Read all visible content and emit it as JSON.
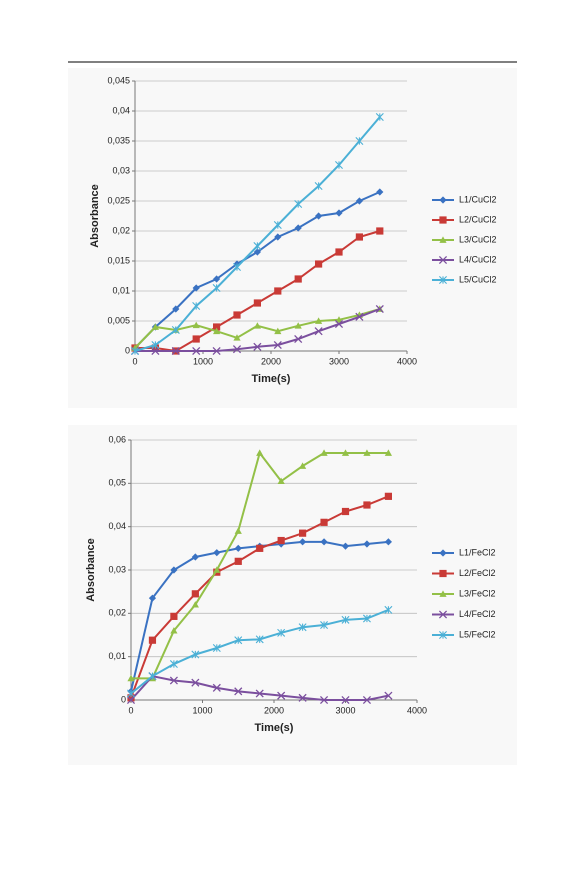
{
  "chart_data": [
    {
      "type": "line",
      "x_label": "Time(s)",
      "y_label": "Absorbance",
      "x": [
        0,
        300,
        600,
        900,
        1200,
        1500,
        1800,
        2100,
        2400,
        2700,
        3000,
        3300,
        3600
      ],
      "xlim": [
        0,
        4000
      ],
      "xticks": [
        0,
        1000,
        2000,
        3000,
        4000
      ],
      "ylim": [
        0,
        0.045
      ],
      "yticks": [
        0,
        {
          "value": 0.005,
          "label": "0,005"
        },
        {
          "value": 0.01,
          "label": "0,01"
        },
        {
          "value": 0.015,
          "label": "0,015"
        },
        {
          "value": 0.02,
          "label": "0,02"
        },
        {
          "value": 0.025,
          "label": "0,025"
        },
        {
          "value": 0.03,
          "label": "0,03"
        },
        {
          "value": 0.035,
          "label": "0,035"
        },
        {
          "value": 0.04,
          "label": "0,04"
        },
        {
          "value": 0.045,
          "label": "0,045"
        }
      ],
      "grid": true,
      "legend": "right",
      "series": [
        {
          "name": "L1/CuCl2",
          "color": "#3a72c2",
          "marker": "diamond",
          "values": [
            0.0005,
            0.004,
            0.007,
            0.0105,
            0.012,
            0.0145,
            0.0165,
            0.019,
            0.0205,
            0.0225,
            0.023,
            0.025,
            0.0265
          ]
        },
        {
          "name": "L2/CuCl2",
          "color": "#c93a36",
          "marker": "square",
          "values": [
            0.0005,
            0.0005,
            0,
            0.002,
            0.004,
            0.006,
            0.008,
            0.01,
            0.012,
            0.0145,
            0.0165,
            0.019,
            0.02
          ]
        },
        {
          "name": "L3/CuCl2",
          "color": "#93c047",
          "marker": "triangle",
          "values": [
            0.0005,
            0.004,
            0.0035,
            0.0043,
            0.0033,
            0.0022,
            0.0042,
            0.0033,
            0.0042,
            0.005,
            0.0052,
            0.006,
            0.007
          ]
        },
        {
          "name": "L4/CuCl2",
          "color": "#7b4f9e",
          "marker": "x",
          "values": [
            0,
            0,
            0,
            0,
            0,
            0.0003,
            0.0007,
            0.001,
            0.002,
            0.0033,
            0.0045,
            0.0057,
            0.007
          ]
        },
        {
          "name": "L5/CuCl2",
          "color": "#4bb0d6",
          "marker": "star",
          "values": [
            0,
            0.001,
            0.0035,
            0.0075,
            0.0105,
            0.014,
            0.0175,
            0.021,
            0.0245,
            0.0275,
            0.031,
            0.035,
            0.039
          ]
        }
      ]
    },
    {
      "type": "line",
      "x_label": "Time(s)",
      "y_label": "Absorbance",
      "x": [
        0,
        300,
        600,
        900,
        1200,
        1500,
        1800,
        2100,
        2400,
        2700,
        3000,
        3300,
        3600
      ],
      "xlim": [
        0,
        4000
      ],
      "xticks": [
        0,
        1000,
        2000,
        3000,
        4000
      ],
      "ylim": [
        0,
        0.06
      ],
      "yticks": [
        0,
        {
          "value": 0.01,
          "label": "0,01"
        },
        {
          "value": 0.02,
          "label": "0,02"
        },
        {
          "value": 0.03,
          "label": "0,03"
        },
        {
          "value": 0.04,
          "label": "0,04"
        },
        {
          "value": 0.05,
          "label": "0,05"
        },
        {
          "value": 0.06,
          "label": "0,06"
        }
      ],
      "grid": true,
      "legend": "right",
      "series": [
        {
          "name": "L1/FeCl2",
          "color": "#3a72c2",
          "marker": "diamond",
          "values": [
            0.002,
            0.0235,
            0.03,
            0.033,
            0.034,
            0.035,
            0.0355,
            0.036,
            0.0365,
            0.0365,
            0.0355,
            0.036,
            0.0365
          ]
        },
        {
          "name": "L2/FeCl2",
          "color": "#c93a36",
          "marker": "square",
          "values": [
            0.0005,
            0.0138,
            0.0193,
            0.0245,
            0.0295,
            0.032,
            0.035,
            0.0368,
            0.0385,
            0.041,
            0.0435,
            0.045,
            0.047
          ]
        },
        {
          "name": "L3/FeCl2",
          "color": "#93c047",
          "marker": "triangle",
          "values": [
            0.005,
            0.005,
            0.016,
            0.022,
            0.03,
            0.039,
            0.057,
            0.0505,
            0.054,
            0.057,
            0.057,
            0.057,
            0.057
          ]
        },
        {
          "name": "L4/FeCl2",
          "color": "#7b4f9e",
          "marker": "x",
          "values": [
            0,
            0.0055,
            0.0045,
            0.004,
            0.0028,
            0.002,
            0.0015,
            0.001,
            0.0005,
            0,
            0,
            0,
            0.001
          ]
        },
        {
          "name": "L5/FeCl2",
          "color": "#4bb0d6",
          "marker": "star",
          "values": [
            0.0015,
            0.0055,
            0.0083,
            0.0105,
            0.012,
            0.0138,
            0.014,
            0.0155,
            0.0168,
            0.0173,
            0.0185,
            0.0188,
            0.0208
          ]
        }
      ]
    }
  ]
}
